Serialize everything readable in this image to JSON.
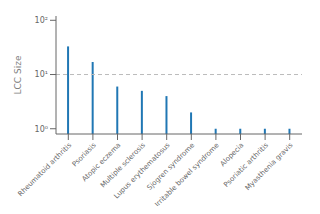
{
  "chart_data": {
    "type": "bar",
    "categories": [
      "Rheumatoid arthritis",
      "Psoriasis",
      "Atopic eczema",
      "Multiple sclerosis",
      "Lupus erythematosus",
      "Sjogren syndrome",
      "Irritable bowel syndrome",
      "Alopecia",
      "Psoriatic arthritis",
      "Myasthenia gravis"
    ],
    "values": [
      33,
      17,
      6,
      5,
      4,
      2,
      1,
      1,
      1,
      1
    ],
    "color": "#2077b4",
    "ylabel": "LCC Size",
    "log": "y",
    "ylim": [
      0.8,
      120
    ],
    "yticks": [
      {
        "value": 1,
        "label": "10⁰"
      },
      {
        "value": 10,
        "label": "10¹"
      },
      {
        "value": 100,
        "label": "10²"
      }
    ],
    "grid": false,
    "hline": {
      "y": 10,
      "color": "#bbbbbb",
      "line_style": "dashed"
    }
  }
}
